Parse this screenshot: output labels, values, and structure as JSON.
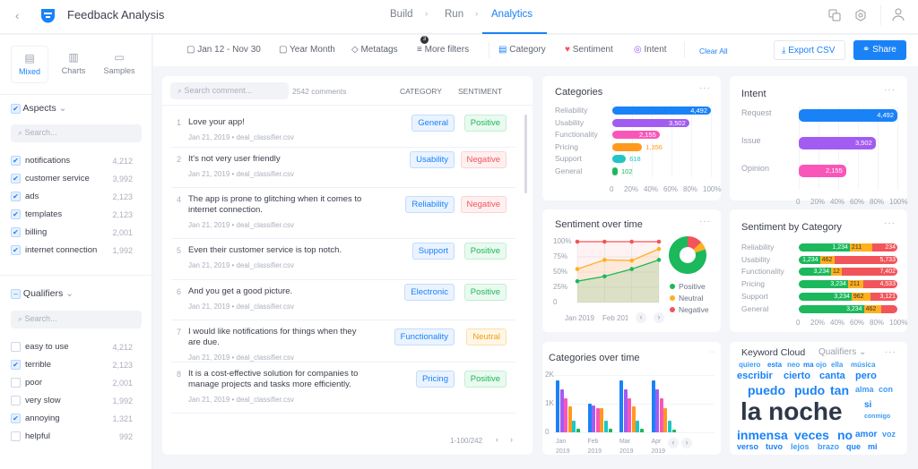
{
  "header": {
    "title": "Feedback Analysis",
    "nav": [
      "Build",
      "Run",
      "Analytics"
    ],
    "active": "Analytics",
    "accent": "#1a82f7"
  },
  "sidebar": {
    "tabs": [
      "Mixed",
      "Charts",
      "Samples"
    ],
    "active_tab": "Mixed",
    "aspects": {
      "title": "Aspects",
      "search_placeholder": "Search...",
      "items": [
        {
          "label": "notifications",
          "count": "4,212",
          "checked": true
        },
        {
          "label": "customer service",
          "count": "3,992",
          "checked": true
        },
        {
          "label": "ads",
          "count": "2,123",
          "checked": true
        },
        {
          "label": "templates",
          "count": "2,123",
          "checked": true
        },
        {
          "label": "billing",
          "count": "2,001",
          "checked": true
        },
        {
          "label": "internet connection",
          "count": "1,992",
          "checked": true
        }
      ]
    },
    "qualifiers": {
      "title": "Qualifiers",
      "search_placeholder": "Search...",
      "items": [
        {
          "label": "easy to use",
          "count": "4,212",
          "checked": false
        },
        {
          "label": "terrible",
          "count": "2,123",
          "checked": true
        },
        {
          "label": "poor",
          "count": "2,001",
          "checked": false
        },
        {
          "label": "very slow",
          "count": "1,992",
          "checked": false
        },
        {
          "label": "annoying",
          "count": "1,321",
          "checked": true
        },
        {
          "label": "helpful",
          "count": "992",
          "checked": false
        }
      ]
    }
  },
  "filters": {
    "date_range": "Jan 12 - Nov 30",
    "granularity": "Year Month",
    "metatags": "Metatags",
    "more_filters": "More filters",
    "more_filters_count": "3",
    "category": "Category",
    "sentiment": "Sentiment",
    "intent": "Intent",
    "clear_all": "Clear All",
    "export": "Export CSV",
    "share": "Share"
  },
  "comments": {
    "search_placeholder": "Search comment...",
    "count": "2542 comments",
    "col_category": "CATEGORY",
    "col_sentiment": "SENTIMENT",
    "pagination": "1-100/242",
    "rows": [
      {
        "num": "1",
        "text": "Love your app!",
        "meta": "Jan 21, 2019 •  deal_classifier.csv",
        "category": "General",
        "sentiment": "Positive"
      },
      {
        "num": "2",
        "text": "It's not very user friendly",
        "meta": "Jan 21, 2019 •  deal_classifier.csv",
        "category": "Usability",
        "sentiment": "Negative"
      },
      {
        "num": "4",
        "text": "The app is prone to glitching when it comes to internet connection.",
        "meta": "Jan 21, 2019 •  deal_classifier.csv",
        "category": "Reliability",
        "sentiment": "Negative"
      },
      {
        "num": "5",
        "text": "Even their customer service is top notch.",
        "meta": "Jan 21, 2019 •  deal_classifier.csv",
        "category": "Support",
        "sentiment": "Positive"
      },
      {
        "num": "6",
        "text": "And you get a good picture.",
        "meta": "Jan 21, 2019 •  deal_classifier.csv",
        "category": "Electronic",
        "sentiment": "Positive"
      },
      {
        "num": "7",
        "text": "I would like notifications for things when they are due.",
        "meta": "Jan 21, 2019 •  deal_classifier.csv",
        "category": "Functionality",
        "sentiment": "Neutral"
      },
      {
        "num": "8",
        "text": "It is a cost-effective solution for companies to manage projects and tasks more efficiently.",
        "meta": "Jan 21, 2019 •  deal_classifier.csv",
        "category": "Pricing",
        "sentiment": "Positive"
      }
    ]
  },
  "chart_data": [
    {
      "title": "Categories",
      "type": "bar",
      "orientation": "horizontal",
      "categories": [
        "Reliability",
        "Usability",
        "Functionality",
        "Pricing",
        "Support",
        "General"
      ],
      "values": [
        4492,
        3502,
        2155,
        1356,
        618,
        102
      ],
      "labels": [
        "4,492",
        "3,502",
        "2,155",
        "1,356",
        "618",
        "102"
      ],
      "colors": [
        "#1a82f7",
        "#a25cf2",
        "#f857b9",
        "#ff9a1f",
        "#20c6c6",
        "#1cb85c"
      ],
      "xticks": [
        "0",
        "20%",
        "40%",
        "60%",
        "80%",
        "100%"
      ]
    },
    {
      "title": "Intent",
      "type": "bar",
      "orientation": "horizontal",
      "categories": [
        "Request",
        "Issue",
        "Opinion"
      ],
      "values": [
        4492,
        3502,
        2155
      ],
      "labels": [
        "4,492",
        "3,502",
        "2,155"
      ],
      "colors": [
        "#1a82f7",
        "#a25cf2",
        "#f857b9"
      ],
      "xticks": [
        "0",
        "20%",
        "40%",
        "60%",
        "80%",
        "100%"
      ]
    },
    {
      "title": "Sentiment over time",
      "type": "area",
      "x": [
        "Jan 2019",
        "Feb 2019",
        "",
        ""
      ],
      "yticks": [
        "100%",
        "75%",
        "50%",
        "25%",
        "0"
      ],
      "ylim": [
        0,
        100
      ],
      "series": [
        {
          "name": "Positive",
          "values": [
            35,
            43,
            55,
            70
          ],
          "color": "#1cb85c"
        },
        {
          "name": "Neutral",
          "values": [
            55,
            70,
            69,
            88
          ],
          "color": "#ffb01f"
        },
        {
          "name": "Negative",
          "values": [
            100,
            100,
            100,
            100
          ],
          "color": "#f2545b"
        }
      ],
      "donut": {
        "Positive": 80,
        "Neutral": 7,
        "Negative": 13
      }
    },
    {
      "title": "Sentiment by Category",
      "type": "bar",
      "stacked": true,
      "categories": [
        "Reliability",
        "Usability",
        "Functionality",
        "Pricing",
        "Support",
        "General"
      ],
      "series": [
        {
          "name": "Positive",
          "color": "#1cb85c",
          "labels": [
            "1,234",
            "1,234",
            "3,234",
            "3,234",
            "3,234",
            "3,234"
          ],
          "share_pct": [
            54,
            20,
            33,
            52,
            56,
            70
          ]
        },
        {
          "name": "Neutral",
          "color": "#ffb01f",
          "labels": [
            "211",
            "462",
            "12",
            "211",
            "962",
            "462"
          ],
          "share_pct": [
            21,
            13,
            7,
            13,
            17,
            16
          ]
        },
        {
          "name": "Negative",
          "color": "#f2545b",
          "labels": [
            "234",
            "5,733",
            "7,402",
            "4,533",
            "3,121",
            ""
          ],
          "share_pct": [
            25,
            67,
            60,
            35,
            27,
            14
          ]
        }
      ],
      "xticks": [
        "0",
        "20%",
        "40%",
        "60%",
        "80%",
        "100%"
      ]
    },
    {
      "title": "Categories over time",
      "type": "bar",
      "categories": [
        "Jan 2019",
        "Feb 2019",
        "Mar 2019",
        "Apr 2019"
      ],
      "ylim": [
        0,
        2000
      ],
      "yticks": [
        "2K",
        "1K",
        "0"
      ],
      "colors": [
        "#1a82f7",
        "#a25cf2",
        "#f857b9",
        "#ff9a1f",
        "#20c6c6",
        "#1cb85c"
      ],
      "series": [
        [
          1800,
          1500,
          1200,
          900,
          400,
          120
        ],
        [
          1000,
          950,
          850,
          850,
          400,
          120
        ],
        [
          1800,
          1500,
          1200,
          900,
          400,
          120
        ],
        [
          1800,
          1500,
          1200,
          850,
          400,
          90
        ]
      ]
    }
  ],
  "keyword_cloud": {
    "title": "Keyword Cloud",
    "filter": "Qualifiers",
    "words": [
      "la noche",
      "puedo",
      "inmensa",
      "veces",
      "no",
      "verso",
      "pudo",
      "canta",
      "pero",
      "tan",
      "cierto",
      "escribir",
      "esta",
      "tuvo",
      "amor",
      "voz",
      "si",
      "alma",
      "con",
      "lejos",
      "brazo",
      "que",
      "mi",
      "neo",
      "quiero",
      "ma",
      "ojo",
      "música",
      "conmigo",
      "ella"
    ]
  }
}
